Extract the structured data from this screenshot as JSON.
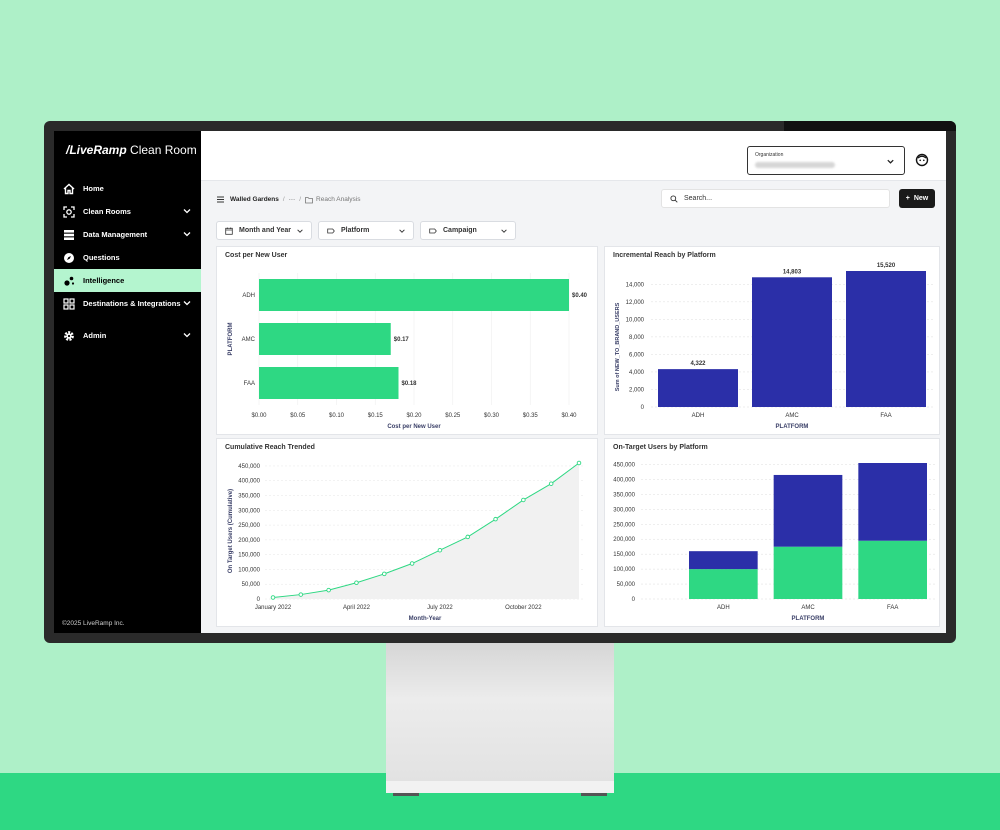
{
  "app": {
    "logo_prefix": "/LiveRamp",
    "logo_suffix": " Clean Room",
    "copyright": "©2025 LiveRamp Inc."
  },
  "sidebar": {
    "items": [
      {
        "label": "Home",
        "icon": "home-icon"
      },
      {
        "label": "Clean Rooms",
        "icon": "clean-room-icon",
        "expandable": true
      },
      {
        "label": "Data Management",
        "icon": "database-icon",
        "expandable": true
      },
      {
        "label": "Questions",
        "icon": "compass-icon"
      },
      {
        "label": "Intelligence",
        "icon": "intelligence-icon",
        "active": true
      },
      {
        "label": "Destinations & Integrations",
        "icon": "grid-icon",
        "expandable": true
      },
      {
        "label": "Admin",
        "icon": "gear-icon",
        "expandable": true
      }
    ]
  },
  "header": {
    "organization_label": "Organization",
    "user_icon": "user-icon"
  },
  "breadcrumb": {
    "root": "Walled Gardens",
    "sep": "/",
    "ellipsis": "···",
    "current": "Reach Analysis"
  },
  "search": {
    "placeholder": "Search..."
  },
  "new_button": {
    "label": "New",
    "icon": "+"
  },
  "filters": [
    {
      "label": "Month and Year",
      "icon": "calendar-icon"
    },
    {
      "label": "Platform",
      "icon": "tag-icon"
    },
    {
      "label": "Campaign",
      "icon": "tag-icon"
    }
  ],
  "colors": {
    "green": "#2ed883",
    "navy": "#2b2fa8",
    "accent_active": "#b4f5cf"
  },
  "chart_data": [
    {
      "type": "bar",
      "orientation": "horizontal",
      "title": "Cost per New User",
      "categories": [
        "ADH",
        "AMC",
        "FAA"
      ],
      "values": [
        0.4,
        0.17,
        0.18
      ],
      "value_labels": [
        "$0.40",
        "$0.17",
        "$0.18"
      ],
      "xlabel": "Cost per New User",
      "ylabel": "PLATFORM",
      "xlim": [
        0,
        0.4
      ],
      "xticks": [
        "$0.00",
        "$0.05",
        "$0.10",
        "$0.15",
        "$0.20",
        "$0.25",
        "$0.30",
        "$0.35",
        "$0.40"
      ]
    },
    {
      "type": "bar",
      "title": "Incremental Reach by Platform",
      "categories": [
        "ADH",
        "AMC",
        "FAA"
      ],
      "values": [
        4322,
        14803,
        15520
      ],
      "value_labels": [
        "4,322",
        "14,803",
        "15,520"
      ],
      "xlabel": "PLATFORM",
      "ylabel": "Sum of NEW_TO_BRAND_USERS",
      "ylim": [
        0,
        15520
      ],
      "yticks": [
        "0",
        "2,000",
        "4,000",
        "6,000",
        "8,000",
        "10,000",
        "12,000",
        "14,000"
      ]
    },
    {
      "type": "area",
      "title": "Cumulative Reach Trended",
      "x": [
        "2022-01",
        "2022-02",
        "2022-03",
        "2022-04",
        "2022-05",
        "2022-06",
        "2022-07",
        "2022-08",
        "2022-09",
        "2022-10",
        "2022-11",
        "2022-12"
      ],
      "values": [
        5000,
        15000,
        30000,
        55000,
        85000,
        120000,
        165000,
        210000,
        270000,
        335000,
        390000,
        460000
      ],
      "xlabel": "Month-Year",
      "ylabel": "On Target Users (Cumulative)",
      "ylim": [
        0,
        460000
      ],
      "yticks": [
        "0",
        "50,000",
        "100,000",
        "150,000",
        "200,000",
        "250,000",
        "300,000",
        "350,000",
        "400,000",
        "450,000"
      ],
      "xticks": [
        "January 2022",
        "April 2022",
        "July 2022",
        "October 2022"
      ]
    },
    {
      "type": "bar",
      "stacked": true,
      "title": "On-Target Users by Platform",
      "categories": [
        "ADH",
        "AMC",
        "FAA"
      ],
      "series": [
        {
          "values": [
            100000,
            175000,
            195000
          ],
          "color": "#2ed883"
        },
        {
          "values": [
            60000,
            240000,
            260000
          ],
          "color": "#2b2fa8"
        }
      ],
      "xlabel": "PLATFORM",
      "ylim": [
        0,
        455000
      ],
      "yticks": [
        "0",
        "50,000",
        "100,000",
        "150,000",
        "200,000",
        "250,000",
        "300,000",
        "350,000",
        "400,000",
        "450,000"
      ]
    }
  ]
}
